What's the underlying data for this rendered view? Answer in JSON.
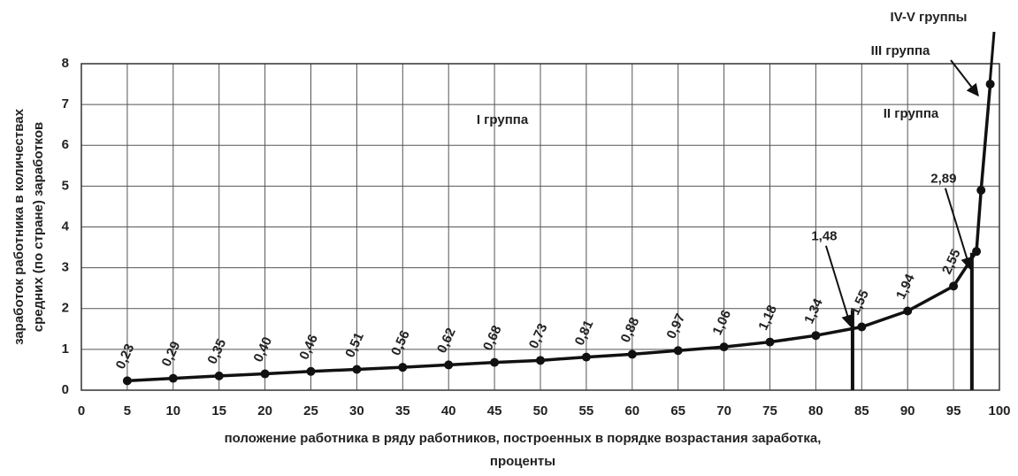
{
  "chart_data": {
    "type": "line",
    "y_label": [
      "заработок работника в количествах",
      "средних (по стране) заработков"
    ],
    "x_label": [
      "положение работника в ряду работников, построенных в порядке возрастания заработка,",
      "проценты"
    ],
    "series": [
      {
        "name": null,
        "color": "#111111",
        "x": [
          5,
          10,
          15,
          20,
          25,
          30,
          35,
          40,
          45,
          50,
          55,
          60,
          65,
          70,
          75,
          80,
          85,
          90,
          95,
          97.5,
          98,
          99
        ],
        "values": [
          0.23,
          0.29,
          0.35,
          0.4,
          0.46,
          0.51,
          0.56,
          0.62,
          0.68,
          0.73,
          0.81,
          0.88,
          0.97,
          1.06,
          1.18,
          1.34,
          1.55,
          1.94,
          2.55,
          3.4,
          4.9,
          7.5
        ],
        "value_labels": [
          "0,23",
          "0,29",
          "0,35",
          "0,40",
          "0,46",
          "0,51",
          "0,56",
          "0,62",
          "0,68",
          "0,73",
          "0,81",
          "0,88",
          "0,97",
          "1,06",
          "1,18",
          "1,34",
          "1,55",
          "1,94",
          "2,55",
          null,
          null,
          null
        ]
      }
    ],
    "markers": [
      {
        "label": "1,48",
        "x": 84,
        "y": 1.48
      },
      {
        "label": "2,89",
        "x": 97,
        "y": 2.89
      }
    ],
    "groups": [
      "I группа",
      "II группа",
      "III группа",
      "IV-V группы"
    ],
    "xlim": [
      0,
      100
    ],
    "ylim": [
      0,
      8
    ],
    "xticks": [
      0,
      5,
      10,
      15,
      20,
      25,
      30,
      35,
      40,
      45,
      50,
      55,
      60,
      65,
      70,
      75,
      80,
      85,
      90,
      95,
      100
    ],
    "yticks": [
      0,
      1,
      2,
      3,
      4,
      5,
      6,
      7,
      8
    ],
    "grid": true
  }
}
